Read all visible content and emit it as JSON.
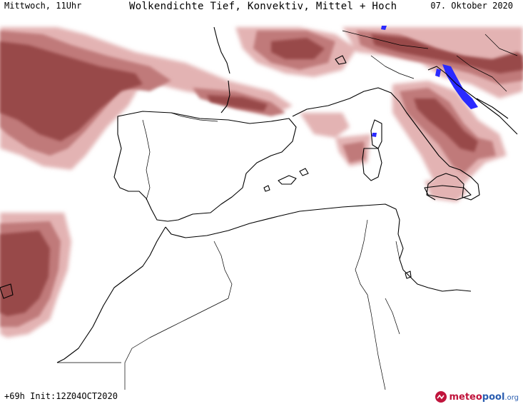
{
  "header": {
    "left": "Mittwoch, 11Uhr",
    "title": "Wolkendichte  Tief, Konvektiv, Mittel + Hoch",
    "date": "07. Oktober 2020"
  },
  "footer": {
    "run": "+69h Init:12Z04OCT2020",
    "logo_part1": "meteo",
    "logo_part2": "pool",
    "logo_part3": ".org"
  },
  "colors": {
    "background": "#ffffff",
    "cloud_light": "#e3b3b3",
    "cloud_mid": "#c07a7a",
    "cloud_dark": "#984848",
    "convective": "#2a2aff",
    "coastline": "#000000"
  },
  "icons": [
    "meteopool-logo-icon"
  ]
}
